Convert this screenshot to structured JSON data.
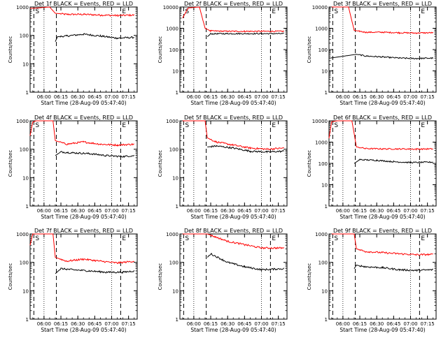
{
  "colors": {
    "events": "#000000",
    "lld": "#ff0000",
    "axis": "#000000"
  },
  "chart_data": [
    {
      "type": "line",
      "title": "Det 1f BLACK = Events, RED = LLD",
      "xlabel": "Start Time (28-Aug-09 05:47:40)",
      "ylabel": "Counts/sec",
      "x_ticks": [
        "06:00",
        "06:15",
        "06:30",
        "06:45",
        "07:00",
        "07:15"
      ],
      "y_ticks": [
        "1",
        "10",
        "100",
        "1000"
      ],
      "ylim": [
        1,
        1000
      ],
      "yscale": "log",
      "markers": [
        {
          "label": "S",
          "time": "05:51"
        },
        {
          "label": "E",
          "time": "07:08"
        }
      ],
      "series": [
        {
          "color": "red",
          "points": [
            [
              "05:47:40",
              900
            ],
            [
              "05:51",
              900
            ],
            [
              "06:05",
              1000
            ],
            [
              "06:10",
              600
            ],
            [
              "06:20",
              550
            ],
            [
              "06:35",
              550
            ],
            [
              "06:50",
              520
            ],
            [
              "07:05",
              500
            ],
            [
              "07:20",
              520
            ]
          ]
        },
        {
          "color": "black",
          "points": [
            [
              "06:10",
              60
            ],
            [
              "06:12",
              90
            ],
            [
              "06:20",
              95
            ],
            [
              "06:35",
              110
            ],
            [
              "06:50",
              95
            ],
            [
              "07:05",
              80
            ],
            [
              "07:20",
              85
            ]
          ]
        }
      ]
    },
    {
      "type": "line",
      "title": "Det 2f BLACK = Events, RED = LLD",
      "xlabel": "Start Time (28-Aug-09 05:47:40)",
      "ylabel": "Counts/sec",
      "x_ticks": [
        "06:00",
        "06:15",
        "06:30",
        "06:45",
        "07:00",
        "07:15"
      ],
      "y_ticks": [
        "1",
        "10",
        "100",
        "1000",
        "10000"
      ],
      "ylim": [
        1,
        10000
      ],
      "yscale": "log",
      "markers": [
        {
          "label": "S",
          "time": "05:51"
        },
        {
          "label": "E",
          "time": "07:08"
        }
      ],
      "series": [
        {
          "color": "red",
          "points": [
            [
              "05:50",
              3000
            ],
            [
              "05:55",
              9000
            ],
            [
              "06:05",
              10000
            ],
            [
              "06:10",
              1000
            ],
            [
              "06:15",
              750
            ],
            [
              "06:30",
              720
            ],
            [
              "06:45",
              720
            ],
            [
              "07:00",
              720
            ],
            [
              "07:20",
              720
            ]
          ]
        },
        {
          "color": "black",
          "points": [
            [
              "06:12",
              400
            ],
            [
              "06:15",
              550
            ],
            [
              "06:30",
              560
            ],
            [
              "06:45",
              560
            ],
            [
              "07:00",
              560
            ],
            [
              "07:20",
              560
            ]
          ]
        }
      ]
    },
    {
      "type": "line",
      "title": "Det 3f BLACK = Events, RED = LLD",
      "xlabel": "Start Time (28-Aug-09 05:47:40)",
      "ylabel": "Counts/sec",
      "x_ticks": [
        "06:00",
        "06:15",
        "06:30",
        "06:45",
        "07:00",
        "07:15"
      ],
      "y_ticks": [
        "1",
        "10",
        "100",
        "1000",
        "10000"
      ],
      "ylim": [
        1,
        10000
      ],
      "yscale": "log",
      "markers": [
        {
          "label": "S",
          "time": "05:51"
        },
        {
          "label": "E",
          "time": "07:08"
        }
      ],
      "series": [
        {
          "color": "red",
          "points": [
            [
              "05:50",
              10000
            ],
            [
              "06:05",
              10000
            ],
            [
              "06:10",
              800
            ],
            [
              "06:20",
              650
            ],
            [
              "06:35",
              650
            ],
            [
              "06:50",
              620
            ],
            [
              "07:05",
              600
            ],
            [
              "07:20",
              620
            ]
          ]
        },
        {
          "color": "black",
          "points": [
            [
              "05:47:40",
              40
            ],
            [
              "05:49",
              40
            ],
            [
              "06:12",
              60
            ],
            [
              "06:20",
              50
            ],
            [
              "06:35",
              45
            ],
            [
              "06:50",
              40
            ],
            [
              "07:05",
              38
            ],
            [
              "07:20",
              40
            ]
          ]
        }
      ]
    },
    {
      "type": "line",
      "title": "Det 4f BLACK = Events, RED = LLD",
      "xlabel": "Start Time (28-Aug-09 05:47:40)",
      "ylabel": "Counts/sec",
      "x_ticks": [
        "06:00",
        "06:15",
        "06:30",
        "06:45",
        "07:00",
        "07:15"
      ],
      "y_ticks": [
        "1",
        "10",
        "100",
        "1000"
      ],
      "ylim": [
        1,
        1000
      ],
      "yscale": "log",
      "markers": [
        {
          "label": "S",
          "time": "05:51"
        },
        {
          "label": "E",
          "time": "07:08"
        }
      ],
      "series": [
        {
          "color": "red",
          "points": [
            [
              "05:47:40",
              300
            ],
            [
              "05:50",
              900
            ],
            [
              "05:53",
              1000
            ],
            [
              "06:08",
              1000
            ],
            [
              "06:10",
              200
            ],
            [
              "06:20",
              150
            ],
            [
              "06:35",
              180
            ],
            [
              "06:50",
              150
            ],
            [
              "07:05",
              140
            ],
            [
              "07:20",
              150
            ]
          ]
        },
        {
          "color": "black",
          "points": [
            [
              "06:10",
              60
            ],
            [
              "06:15",
              80
            ],
            [
              "06:25",
              75
            ],
            [
              "06:40",
              70
            ],
            [
              "06:55",
              60
            ],
            [
              "07:10",
              55
            ],
            [
              "07:20",
              60
            ]
          ]
        }
      ]
    },
    {
      "type": "line",
      "title": "Det 5f BLACK = Events, RED = LLD",
      "xlabel": "Start Time (28-Aug-09 05:47:40)",
      "ylabel": "Counts/sec",
      "x_ticks": [
        "06:00",
        "06:15",
        "06:30",
        "06:45",
        "07:00",
        "07:15"
      ],
      "y_ticks": [
        "1",
        "10",
        "100",
        "1000"
      ],
      "ylim": [
        1,
        1000
      ],
      "yscale": "log",
      "markers": [
        {
          "label": "S",
          "time": "05:51"
        },
        {
          "label": "E",
          "time": "07:08"
        }
      ],
      "series": [
        {
          "color": "red",
          "points": [
            [
              "05:50",
              1000
            ],
            [
              "06:10",
              1000
            ],
            [
              "06:12",
              250
            ],
            [
              "06:20",
              180
            ],
            [
              "06:35",
              140
            ],
            [
              "06:50",
              110
            ],
            [
              "07:05",
              100
            ],
            [
              "07:20",
              110
            ]
          ]
        },
        {
          "color": "black",
          "points": [
            [
              "06:12",
              120
            ],
            [
              "06:20",
              130
            ],
            [
              "06:35",
              110
            ],
            [
              "06:50",
              85
            ],
            [
              "07:05",
              80
            ],
            [
              "07:20",
              85
            ]
          ]
        }
      ]
    },
    {
      "type": "line",
      "title": "Det 6f BLACK = Events, RED = LLD",
      "xlabel": "Start Time (28-Aug-09 05:47:40)",
      "ylabel": "Counts/sec",
      "x_ticks": [
        "06:00",
        "06:15",
        "06:30",
        "06:45",
        "07:00",
        "07:15"
      ],
      "y_ticks": [
        "1",
        "10",
        "100",
        "1000",
        "10000"
      ],
      "ylim": [
        1,
        10000
      ],
      "yscale": "log",
      "markers": [
        {
          "label": "S",
          "time": "05:51"
        },
        {
          "label": "E",
          "time": "07:08"
        }
      ],
      "series": [
        {
          "color": "red",
          "points": [
            [
              "05:47:40",
              1500
            ],
            [
              "05:50",
              9000
            ],
            [
              "05:55",
              10000
            ],
            [
              "06:08",
              10000
            ],
            [
              "06:12",
              600
            ],
            [
              "06:20",
              500
            ],
            [
              "06:35",
              480
            ],
            [
              "06:50",
              480
            ],
            [
              "07:05",
              470
            ],
            [
              "07:20",
              480
            ]
          ]
        },
        {
          "color": "black",
          "points": [
            [
              "06:10",
              100
            ],
            [
              "06:15",
              150
            ],
            [
              "06:30",
              140
            ],
            [
              "06:45",
              120
            ],
            [
              "07:00",
              110
            ],
            [
              "07:20",
              115
            ]
          ]
        }
      ]
    },
    {
      "type": "line",
      "title": "Det 7f BLACK = Events, RED = LLD",
      "xlabel": "Start Time (28-Aug-09 05:47:40)",
      "ylabel": "Counts/sec",
      "x_ticks": [
        "06:00",
        "06:15",
        "06:30",
        "06:45",
        "07:00",
        "07:15"
      ],
      "y_ticks": [
        "1",
        "10",
        "100",
        "1000"
      ],
      "ylim": [
        1,
        1000
      ],
      "yscale": "log",
      "markers": [
        {
          "label": "S",
          "time": "05:51"
        },
        {
          "label": "E",
          "time": "07:08"
        }
      ],
      "series": [
        {
          "color": "red",
          "points": [
            [
              "05:47:40",
              400
            ],
            [
              "05:50",
              1000
            ],
            [
              "06:08",
              1000
            ],
            [
              "06:10",
              150
            ],
            [
              "06:20",
              110
            ],
            [
              "06:35",
              130
            ],
            [
              "06:50",
              110
            ],
            [
              "07:05",
              95
            ],
            [
              "07:20",
              110
            ]
          ]
        },
        {
          "color": "black",
          "points": [
            [
              "06:10",
              40
            ],
            [
              "06:15",
              60
            ],
            [
              "06:25",
              55
            ],
            [
              "06:40",
              50
            ],
            [
              "06:55",
              45
            ],
            [
              "07:10",
              45
            ],
            [
              "07:20",
              50
            ]
          ]
        }
      ]
    },
    {
      "type": "line",
      "title": "Det 8f BLACK = Events, RED = LLD",
      "xlabel": "Start Time (28-Aug-09 05:47:40)",
      "ylabel": "Counts/sec",
      "x_ticks": [
        "06:00",
        "06:15",
        "06:30",
        "06:45",
        "07:00",
        "07:15"
      ],
      "y_ticks": [
        "1",
        "10",
        "100",
        "1000"
      ],
      "ylim": [
        1,
        1000
      ],
      "yscale": "log",
      "markers": [
        {
          "label": "S",
          "time": "05:51"
        },
        {
          "label": "E",
          "time": "07:08"
        }
      ],
      "series": [
        {
          "color": "red",
          "points": [
            [
              "05:50",
              1000
            ],
            [
              "06:12",
              1000
            ],
            [
              "06:15",
              900
            ],
            [
              "06:30",
              550
            ],
            [
              "06:45",
              420
            ],
            [
              "07:00",
              320
            ],
            [
              "07:20",
              320
            ]
          ]
        },
        {
          "color": "black",
          "points": [
            [
              "06:12",
              150
            ],
            [
              "06:15",
              200
            ],
            [
              "06:30",
              100
            ],
            [
              "06:45",
              70
            ],
            [
              "07:00",
              55
            ],
            [
              "07:20",
              60
            ]
          ]
        }
      ]
    },
    {
      "type": "line",
      "title": "Det 9f BLACK = Events, RED = LLD",
      "xlabel": "Start Time (28-Aug-09 05:47:40)",
      "ylabel": "Counts/sec",
      "x_ticks": [
        "06:00",
        "06:15",
        "06:30",
        "06:45",
        "07:00",
        "07:15"
      ],
      "y_ticks": [
        "1",
        "10",
        "100",
        "1000"
      ],
      "ylim": [
        1,
        1000
      ],
      "yscale": "log",
      "markers": [
        {
          "label": "S",
          "time": "05:51"
        },
        {
          "label": "E",
          "time": "07:08"
        }
      ],
      "series": [
        {
          "color": "red",
          "points": [
            [
              "05:50",
              1000
            ],
            [
              "06:10",
              1000
            ],
            [
              "06:12",
              300
            ],
            [
              "06:20",
              240
            ],
            [
              "06:35",
              220
            ],
            [
              "06:50",
              200
            ],
            [
              "07:05",
              185
            ],
            [
              "07:20",
              190
            ]
          ]
        },
        {
          "color": "black",
          "points": [
            [
              "06:10",
              60
            ],
            [
              "06:12",
              80
            ],
            [
              "06:20",
              70
            ],
            [
              "06:35",
              65
            ],
            [
              "06:50",
              55
            ],
            [
              "07:05",
              52
            ],
            [
              "07:20",
              55
            ]
          ]
        }
      ]
    }
  ]
}
